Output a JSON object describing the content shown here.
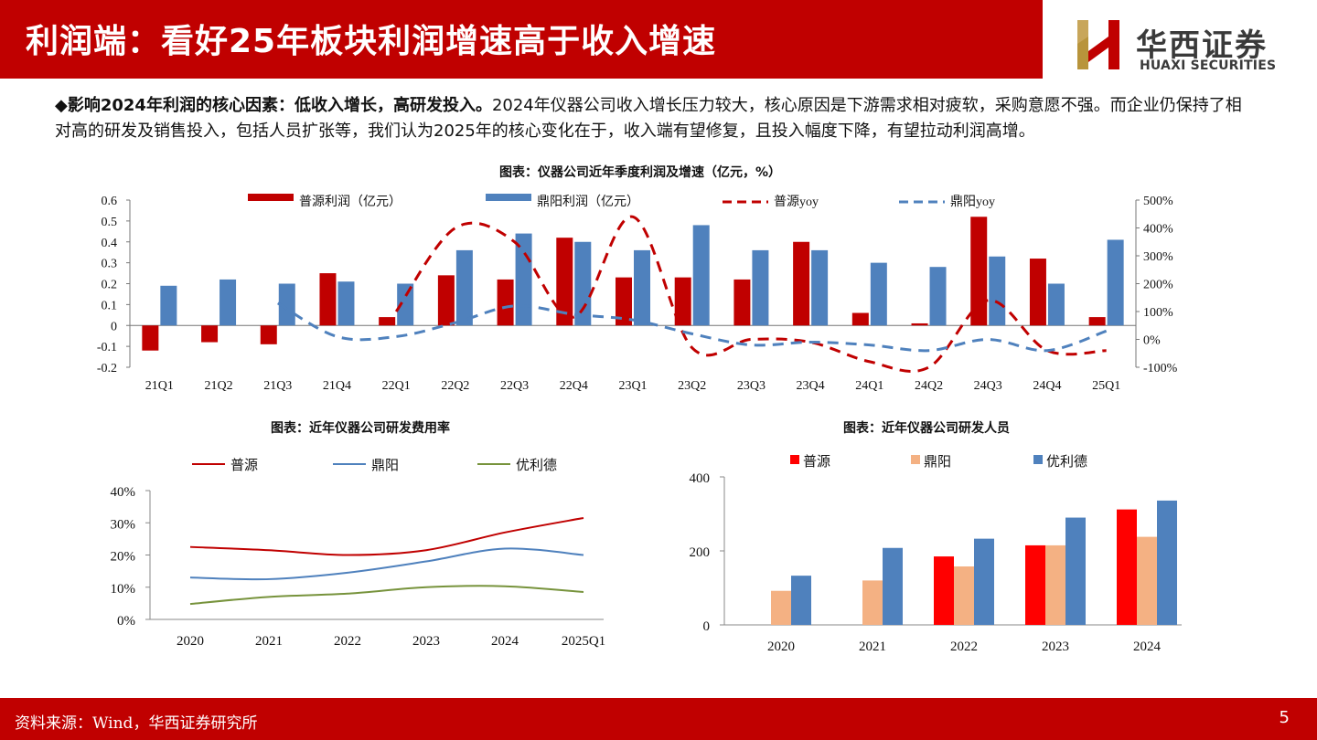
{
  "header": {
    "title": "利润端：看好25年板块利润增速高于收入增速",
    "logo_cn": "华西证券",
    "logo_en": "HUAXI SECURITIES",
    "brand_color": "#c00000"
  },
  "intro": {
    "lead": "◆影响2024年利润的核心因素：低收入增长，高研发投入。",
    "body": "2024年仪器公司收入增长压力较大，核心原因是下游需求相对疲软，采购意愿不强。而企业仍保持了相对高的研发及销售投入，包括人员扩张等，我们认为2025年的核心变化在于，收入端有望修复，且投入幅度下降，有望拉动利润高增。"
  },
  "chart_data": [
    {
      "title": "图表：仪器公司近年季度利润及增速（亿元，%）",
      "type": "bar",
      "categories": [
        "21Q1",
        "21Q2",
        "21Q3",
        "21Q4",
        "22Q1",
        "22Q2",
        "22Q3",
        "22Q4",
        "23Q1",
        "23Q2",
        "23Q3",
        "23Q4",
        "24Q1",
        "24Q2",
        "24Q3",
        "24Q4",
        "25Q1"
      ],
      "series": [
        {
          "name": "普源利润（亿元）",
          "type": "bar",
          "axis": "left",
          "color": "#c00000",
          "values": [
            -0.12,
            -0.08,
            -0.09,
            0.25,
            0.04,
            0.24,
            0.22,
            0.42,
            0.23,
            0.23,
            0.22,
            0.4,
            0.06,
            0.01,
            0.52,
            0.32,
            0.04
          ]
        },
        {
          "name": "鼎阳利润（亿元）",
          "type": "bar",
          "axis": "left",
          "color": "#4f81bd",
          "values": [
            0.19,
            0.22,
            0.2,
            0.21,
            0.2,
            0.36,
            0.44,
            0.4,
            0.36,
            0.48,
            0.36,
            0.36,
            0.3,
            0.28,
            0.33,
            0.2,
            0.41
          ]
        },
        {
          "name": "普源yoy",
          "type": "line",
          "axis": "right",
          "color": "#c00000",
          "dash": "dashed",
          "values": [
            null,
            null,
            null,
            null,
            100,
            400,
            350,
            80,
            440,
            -30,
            0,
            -10,
            -80,
            -100,
            140,
            -40,
            -40
          ]
        },
        {
          "name": "鼎阳yoy",
          "type": "line",
          "axis": "right",
          "color": "#4f81bd",
          "dash": "dashed",
          "values": [
            null,
            null,
            130,
            10,
            10,
            60,
            120,
            90,
            70,
            20,
            -20,
            -10,
            -20,
            -40,
            0,
            -40,
            30
          ]
        }
      ],
      "ylim_left": [
        -0.2,
        0.6
      ],
      "ylim_right": [
        -100,
        500
      ],
      "yticks_left": [
        "-0.2",
        "-0.1",
        "0",
        "0.1",
        "0.2",
        "0.3",
        "0.4",
        "0.5",
        "0.6"
      ],
      "yticks_right": [
        "-100%",
        "0%",
        "100%",
        "200%",
        "300%",
        "400%",
        "500%"
      ],
      "legend_position": "top"
    },
    {
      "title": "图表：近年仪器公司研发费用率",
      "type": "line",
      "categories": [
        "2020",
        "2021",
        "2022",
        "2023",
        "2024",
        "2025Q1"
      ],
      "series": [
        {
          "name": "普源",
          "color": "#c00000",
          "values": [
            22.5,
            21.5,
            20.0,
            21.5,
            27.0,
            31.5
          ]
        },
        {
          "name": "鼎阳",
          "color": "#4f81bd",
          "values": [
            13.0,
            12.5,
            14.5,
            18.0,
            22.0,
            20.0
          ]
        },
        {
          "name": "优利德",
          "color": "#77933c",
          "values": [
            4.8,
            7.0,
            8.0,
            10.0,
            10.3,
            8.5
          ]
        }
      ],
      "ylim": [
        0,
        40
      ],
      "yticks": [
        "0%",
        "10%",
        "20%",
        "30%",
        "40%"
      ],
      "legend_position": "top"
    },
    {
      "title": "图表：近年仪器公司研发人员",
      "type": "bar",
      "categories": [
        "2020",
        "2021",
        "2022",
        "2023",
        "2024"
      ],
      "series": [
        {
          "name": "普源",
          "color": "#ff0000",
          "values": [
            null,
            null,
            185,
            215,
            312
          ]
        },
        {
          "name": "鼎阳",
          "color": "#f4b183",
          "values": [
            92,
            120,
            158,
            215,
            238
          ]
        },
        {
          "name": "优利德",
          "color": "#4f81bd",
          "values": [
            133,
            208,
            233,
            290,
            336
          ]
        }
      ],
      "ylim": [
        0,
        400
      ],
      "yticks": [
        "0",
        "200",
        "400"
      ],
      "legend_position": "top"
    }
  ],
  "footer": {
    "source": "资料来源：Wind，华西证券研究所",
    "page": "5"
  }
}
